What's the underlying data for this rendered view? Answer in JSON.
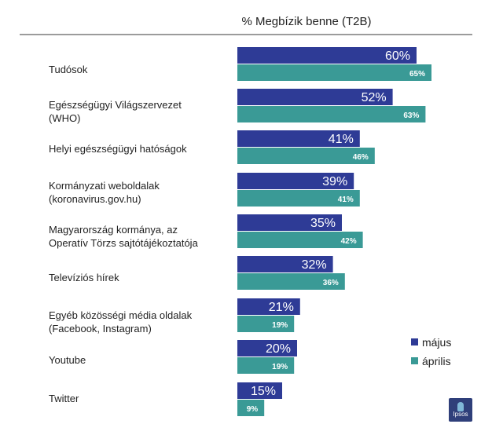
{
  "chart_data": {
    "type": "bar",
    "orientation": "horizontal",
    "title": "% Megbízik benne (T2B)",
    "categories": [
      "Tudósok",
      "Egészségügyi Világszervezet\n(WHO)",
      "Helyi egészségügyi hatóságok",
      "Kormányzati weboldalak\n(koronavirus.gov.hu)",
      "Magyarország kormánya, az\nOperatív Törzs sajtótájékoztatója",
      "Televíziós hírek",
      "Egyéb közösségi média oldalak\n(Facebook, Instagram)",
      "Youtube",
      "Twitter"
    ],
    "series": [
      {
        "name": "május",
        "color": "#2e3b96",
        "values": [
          60,
          52,
          41,
          39,
          35,
          32,
          21,
          20,
          15
        ],
        "labels": [
          "60%",
          "52%",
          "41%",
          "39%",
          "35%",
          "32%",
          "21%",
          "20%",
          "15%"
        ]
      },
      {
        "name": "április",
        "color": "#3a9a96",
        "values": [
          65,
          63,
          46,
          41,
          42,
          36,
          19,
          19,
          9
        ],
        "labels": [
          "65%",
          "63%",
          "46%",
          "41%",
          "42%",
          "36%",
          "19%",
          "19%",
          "9%"
        ]
      }
    ],
    "legend_position": "bottom-right",
    "grid": false
  },
  "logo": {
    "text": "Ipsos"
  }
}
